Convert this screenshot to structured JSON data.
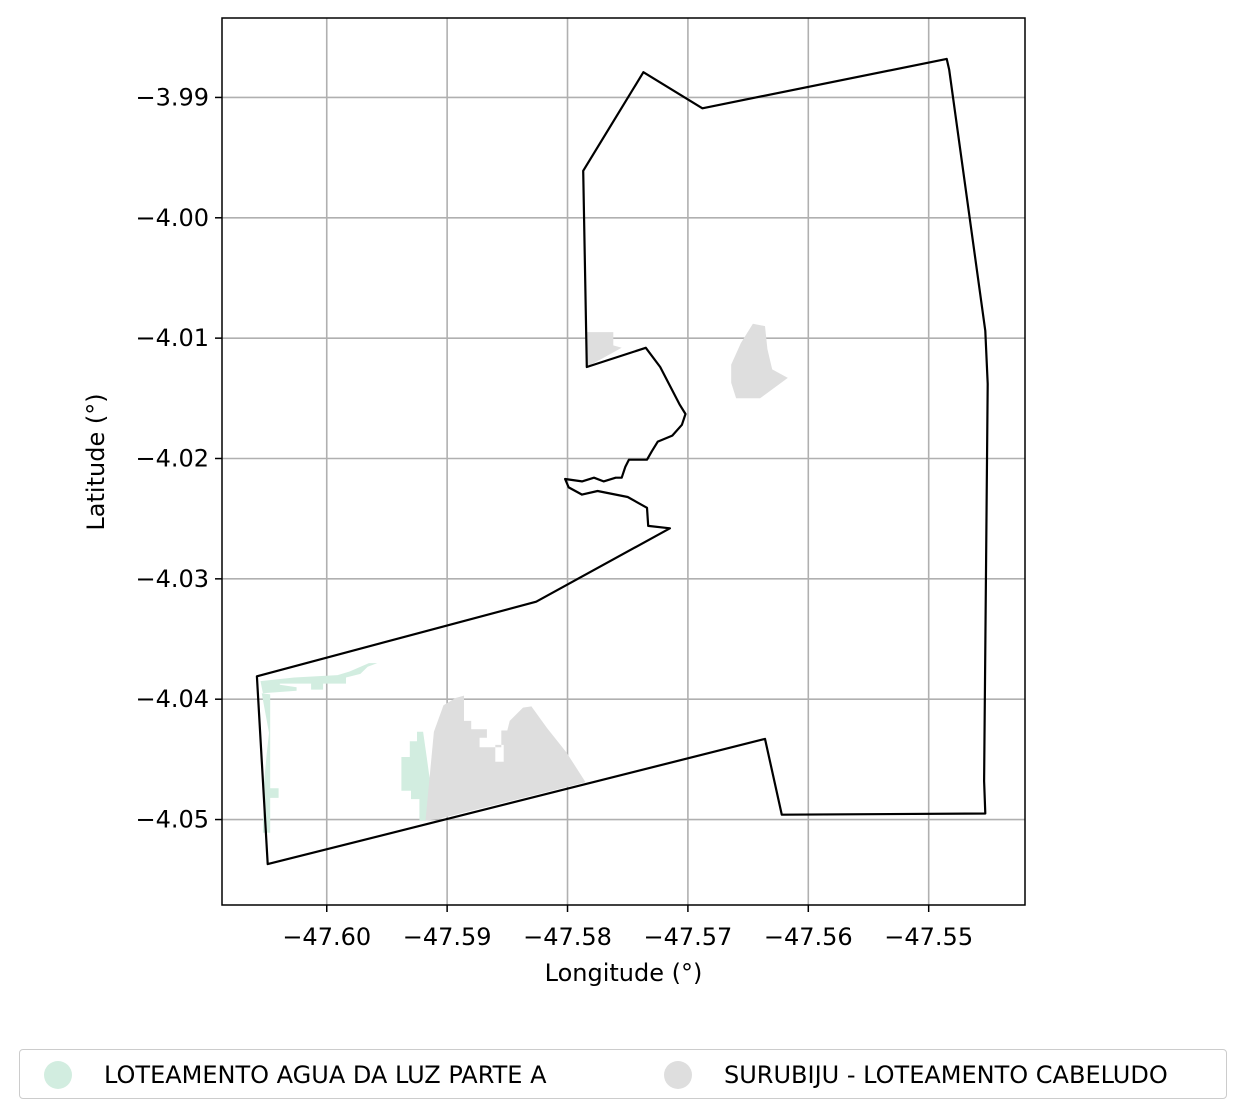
{
  "chart_data": {
    "type": "map",
    "xlabel": "Longitude (°)",
    "ylabel": "Latitude (°)",
    "xlim": [
      -47.6087,
      -47.542
    ],
    "ylim": [
      -4.0571,
      -3.9834
    ],
    "xticks": [
      -47.6,
      -47.59,
      -47.58,
      -47.57,
      -47.56,
      -47.55
    ],
    "xtick_labels": [
      "−47.60",
      "−47.59",
      "−47.58",
      "−47.57",
      "−47.56",
      "−47.55"
    ],
    "yticks": [
      -3.99,
      -4.0,
      -4.01,
      -4.02,
      -4.03,
      -4.04,
      -4.05
    ],
    "ytick_labels": [
      "−3.99",
      "−4.00",
      "−4.01",
      "−4.02",
      "−4.03",
      "−4.04",
      "−4.05"
    ],
    "grid": true,
    "legend_position": "bottom",
    "boundary": {
      "stroke": "#000000",
      "coords": [
        [
          -47.6058,
          -4.0381
        ],
        [
          -47.5826,
          -4.0319
        ],
        [
          -47.5715,
          -4.0258
        ],
        [
          -47.5733,
          -4.0256
        ],
        [
          -47.5734,
          -4.0241
        ],
        [
          -47.575,
          -4.0232
        ],
        [
          -47.5775,
          -4.0227
        ],
        [
          -47.5788,
          -4.023
        ],
        [
          -47.5799,
          -4.0224
        ],
        [
          -47.5802,
          -4.0217
        ],
        [
          -47.5788,
          -4.0219
        ],
        [
          -47.5778,
          -4.0216
        ],
        [
          -47.577,
          -4.0219
        ],
        [
          -47.576,
          -4.0216
        ],
        [
          -47.5755,
          -4.0216
        ],
        [
          -47.5752,
          -4.0207
        ],
        [
          -47.5749,
          -4.0201
        ],
        [
          -47.5734,
          -4.0201
        ],
        [
          -47.573,
          -4.0194
        ],
        [
          -47.5725,
          -4.0186
        ],
        [
          -47.5713,
          -4.0181
        ],
        [
          -47.5705,
          -4.0172
        ],
        [
          -47.5702,
          -4.0163
        ],
        [
          -47.5707,
          -4.0155
        ],
        [
          -47.5723,
          -4.0124
        ],
        [
          -47.5735,
          -4.0108
        ],
        [
          -47.5784,
          -4.0124
        ],
        [
          -47.5787,
          -3.9961
        ],
        [
          -47.5737,
          -3.9879
        ],
        [
          -47.5688,
          -3.9909
        ],
        [
          -47.5485,
          -3.9868
        ],
        [
          -47.5483,
          -3.9877
        ],
        [
          -47.5453,
          -4.0094
        ],
        [
          -47.5451,
          -4.0138
        ],
        [
          -47.5454,
          -4.0468
        ],
        [
          -47.5453,
          -4.0495
        ],
        [
          -47.5622,
          -4.0496
        ],
        [
          -47.5636,
          -4.0433
        ],
        [
          -47.6049,
          -4.0537
        ]
      ]
    },
    "series": [
      {
        "name": "LOTEAMENTO AGUA DA LUZ PARTE A",
        "color": "#d2ede0",
        "polygons": [
          [
            [
              -47.6053,
              -4.0395
            ],
            [
              -47.6025,
              -4.0393
            ],
            [
              -47.6025,
              -4.039
            ],
            [
              -47.6039,
              -4.0388
            ],
            [
              -47.6039,
              -4.0387
            ],
            [
              -47.6013,
              -4.0387
            ],
            [
              -47.6013,
              -4.0392
            ],
            [
              -47.6003,
              -4.0392
            ],
            [
              -47.6003,
              -4.0387
            ],
            [
              -47.5984,
              -4.0387
            ],
            [
              -47.5984,
              -4.0382
            ],
            [
              -47.5972,
              -4.0379
            ],
            [
              -47.5966,
              -4.0373
            ],
            [
              -47.5958,
              -4.037
            ],
            [
              -47.5965,
              -4.037
            ],
            [
              -47.5981,
              -4.0377
            ],
            [
              -47.5991,
              -4.038
            ],
            [
              -47.6027,
              -4.0382
            ],
            [
              -47.6055,
              -4.0385
            ],
            [
              -47.6053,
              -4.0395
            ]
          ],
          [
            [
              -47.6054,
              -4.0395
            ],
            [
              -47.6047,
              -4.0396
            ],
            [
              -47.6047,
              -4.0474
            ],
            [
              -47.604,
              -4.0474
            ],
            [
              -47.604,
              -4.0482
            ],
            [
              -47.6047,
              -4.0482
            ],
            [
              -47.6047,
              -4.0511
            ],
            [
              -47.6053,
              -4.0511
            ],
            [
              -47.6052,
              -4.0469
            ],
            [
              -47.605,
              -4.0447
            ],
            [
              -47.6048,
              -4.0428
            ],
            [
              -47.6054,
              -4.0395
            ]
          ],
          [
            [
              -47.5918,
              -4.0501
            ],
            [
              -47.5923,
              -4.0501
            ],
            [
              -47.5923,
              -4.0483
            ],
            [
              -47.593,
              -4.0483
            ],
            [
              -47.593,
              -4.0476
            ],
            [
              -47.5938,
              -4.0476
            ],
            [
              -47.5938,
              -4.0456
            ],
            [
              -47.5938,
              -4.0448
            ],
            [
              -47.5931,
              -4.0448
            ],
            [
              -47.5931,
              -4.0435
            ],
            [
              -47.5925,
              -4.0435
            ],
            [
              -47.5925,
              -4.0427
            ],
            [
              -47.592,
              -4.0427
            ],
            [
              -47.5917,
              -4.0448
            ],
            [
              -47.5914,
              -4.047
            ],
            [
              -47.5913,
              -4.049
            ],
            [
              -47.5918,
              -4.0501
            ]
          ]
        ]
      },
      {
        "name": "SURUBIJU - LOTEAMENTO CABELUDO",
        "color": "#dedede",
        "polygons": [
          [
            [
              -47.5918,
              -4.0501
            ],
            [
              -47.5911,
              -4.0427
            ],
            [
              -47.5903,
              -4.0405
            ],
            [
              -47.5893,
              -4.0399
            ],
            [
              -47.5886,
              -4.0397
            ],
            [
              -47.5886,
              -4.0418
            ],
            [
              -47.588,
              -4.0418
            ],
            [
              -47.588,
              -4.0425
            ],
            [
              -47.5867,
              -4.0425
            ],
            [
              -47.5867,
              -4.0432
            ],
            [
              -47.5873,
              -4.0432
            ],
            [
              -47.5873,
              -4.044
            ],
            [
              -47.5867,
              -4.044
            ],
            [
              -47.5855,
              -4.044
            ],
            [
              -47.5855,
              -4.0426
            ],
            [
              -47.585,
              -4.0426
            ],
            [
              -47.5848,
              -4.0418
            ],
            [
              -47.5837,
              -4.0407
            ],
            [
              -47.583,
              -4.0406
            ],
            [
              -47.5817,
              -4.0424
            ],
            [
              -47.5801,
              -4.0444
            ],
            [
              -47.5785,
              -4.0469
            ],
            [
              -47.5905,
              -4.0499
            ],
            [
              -47.5918,
              -4.0501
            ]
          ],
          [
            [
              -47.578,
              -4.0095
            ],
            [
              -47.5762,
              -4.0095
            ],
            [
              -47.5762,
              -4.0106
            ],
            [
              -47.5755,
              -4.0108
            ],
            [
              -47.5784,
              -4.0124
            ],
            [
              -47.5784,
              -4.0095
            ],
            [
              -47.578,
              -4.0095
            ]
          ],
          [
            [
              -47.566,
              -4.015
            ],
            [
              -47.5664,
              -4.0137
            ],
            [
              -47.5664,
              -4.0122
            ],
            [
              -47.5656,
              -4.0104
            ],
            [
              -47.5646,
              -4.0088
            ],
            [
              -47.5636,
              -4.009
            ],
            [
              -47.5634,
              -4.0109
            ],
            [
              -47.563,
              -4.0126
            ],
            [
              -47.5617,
              -4.0133
            ],
            [
              -47.564,
              -4.015
            ],
            [
              -47.566,
              -4.015
            ]
          ]
        ],
        "holes": [
          [
            [
              -47.586,
              -4.0438
            ],
            [
              -47.5853,
              -4.0438
            ],
            [
              -47.5853,
              -4.0452
            ],
            [
              -47.586,
              -4.0452
            ],
            [
              -47.586,
              -4.0438
            ]
          ]
        ]
      }
    ]
  },
  "legend": {
    "items": [
      {
        "label": "LOTEAMENTO AGUA DA LUZ PARTE A",
        "color": "#d2ede0"
      },
      {
        "label": "SURUBIJU - LOTEAMENTO CABELUDO",
        "color": "#dedede"
      }
    ]
  }
}
